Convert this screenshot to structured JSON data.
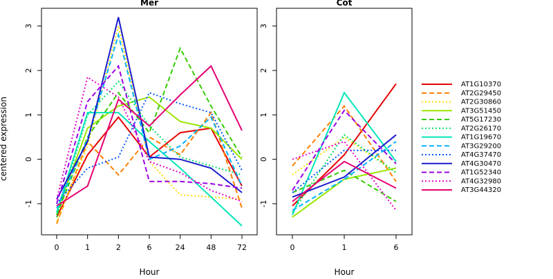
{
  "chart_data": [
    {
      "type": "line",
      "title": "Mer",
      "xlabel": "Hour",
      "ylabel": "centered expression",
      "categories": [
        "0",
        "1",
        "2",
        "6",
        "24",
        "48",
        "72"
      ],
      "ylim": [
        -1.7,
        3.4
      ],
      "yticks": [
        -1,
        0,
        1,
        2,
        3
      ],
      "series": [
        {
          "name": "AT1G10370",
          "values": [
            -1.3,
            0.1,
            0.95,
            0.05,
            0.6,
            0.7,
            -0.6
          ]
        },
        {
          "name": "AT2G29450",
          "values": [
            -1.45,
            0.4,
            -0.35,
            0.5,
            0.1,
            1.05,
            -1.1
          ]
        },
        {
          "name": "AT2G30860",
          "values": [
            -1.4,
            0.3,
            3.0,
            -0.05,
            -0.8,
            -0.85,
            -0.9
          ]
        },
        {
          "name": "AT3G51450",
          "values": [
            -1.2,
            0.7,
            1.2,
            1.4,
            0.85,
            0.7,
            0.0
          ]
        },
        {
          "name": "AT5G17230",
          "values": [
            -1.25,
            0.5,
            1.5,
            0.6,
            2.5,
            1.2,
            0.05
          ]
        },
        {
          "name": "AT2G26170",
          "values": [
            -1.3,
            1.0,
            1.75,
            0.75,
            0.05,
            -0.15,
            -0.35
          ]
        },
        {
          "name": "AT1G19670",
          "values": [
            -1.2,
            1.05,
            1.05,
            0.4,
            -0.2,
            -0.85,
            -1.5
          ]
        },
        {
          "name": "AT3G29200",
          "values": [
            -1.1,
            0.45,
            2.8,
            0.0,
            0.3,
            0.95,
            -0.6
          ]
        },
        {
          "name": "AT4G37470",
          "values": [
            -1.0,
            -0.2,
            0.05,
            1.5,
            1.25,
            1.05,
            -0.25
          ]
        },
        {
          "name": "AT4G30470",
          "values": [
            -0.9,
            0.4,
            3.2,
            0.05,
            0.0,
            -0.2,
            -0.75
          ]
        },
        {
          "name": "AT1G52340",
          "values": [
            -1.0,
            1.3,
            2.1,
            -0.5,
            -0.5,
            -0.55,
            -0.65
          ]
        },
        {
          "name": "AT4G32980",
          "values": [
            -0.9,
            1.85,
            1.4,
            -0.05,
            -0.3,
            -0.7,
            -0.95
          ]
        },
        {
          "name": "AT3G44320",
          "values": [
            -1.05,
            -0.6,
            1.35,
            0.75,
            1.45,
            2.1,
            0.65
          ]
        }
      ]
    },
    {
      "type": "line",
      "title": "Cot",
      "xlabel": "Hour",
      "categories": [
        "0",
        "1",
        "6"
      ],
      "ylim": [
        -1.7,
        3.4
      ],
      "yticks": [
        -1,
        0,
        1,
        2,
        3
      ],
      "series": [
        {
          "name": "AT1G10370",
          "values": [
            -1.05,
            0.1,
            1.7
          ]
        },
        {
          "name": "AT2G29450",
          "values": [
            -0.15,
            1.2,
            -0.5
          ]
        },
        {
          "name": "AT2G30860",
          "values": [
            -0.35,
            0.5,
            -0.3
          ]
        },
        {
          "name": "AT3G51450",
          "values": [
            -1.3,
            -0.45,
            -0.2
          ]
        },
        {
          "name": "AT5G17230",
          "values": [
            -0.75,
            -0.25,
            -0.95
          ]
        },
        {
          "name": "AT2G26170",
          "values": [
            -1.2,
            0.55,
            -0.3
          ]
        },
        {
          "name": "AT1G19670",
          "values": [
            -1.25,
            1.5,
            -0.05
          ]
        },
        {
          "name": "AT3G29200",
          "values": [
            -1.15,
            -0.45,
            0.4
          ]
        },
        {
          "name": "AT4G37470",
          "values": [
            -0.75,
            0.2,
            0.2
          ]
        },
        {
          "name": "AT4G30470",
          "values": [
            -0.85,
            -0.4,
            0.55
          ]
        },
        {
          "name": "AT1G52340",
          "values": [
            -0.7,
            1.1,
            -0.1
          ]
        },
        {
          "name": "AT4G32980",
          "values": [
            0.0,
            0.4,
            -1.15
          ]
        },
        {
          "name": "AT3G44320",
          "values": [
            -0.95,
            -0.05,
            -0.65
          ]
        }
      ]
    }
  ],
  "legend": {
    "placement": "right",
    "entries": [
      {
        "label": "AT1G10370",
        "color": "#e60000",
        "dash": "solid"
      },
      {
        "label": "AT2G29450",
        "color": "#ff7f00",
        "dash": "dashed"
      },
      {
        "label": "AT2G30860",
        "color": "#ffdd00",
        "dash": "dotted"
      },
      {
        "label": "AT3G51450",
        "color": "#99e600",
        "dash": "solid"
      },
      {
        "label": "AT5G17230",
        "color": "#33cc00",
        "dash": "dashed"
      },
      {
        "label": "AT2G26170",
        "color": "#00e060",
        "dash": "dotted"
      },
      {
        "label": "AT1G19670",
        "color": "#00e6b8",
        "dash": "solid"
      },
      {
        "label": "AT3G29200",
        "color": "#00b3ff",
        "dash": "dashed"
      },
      {
        "label": "AT4G37470",
        "color": "#0055ff",
        "dash": "dotted"
      },
      {
        "label": "AT4G30470",
        "color": "#1a1acc",
        "dash": "solid"
      },
      {
        "label": "AT1G52340",
        "color": "#9900e6",
        "dash": "dashed"
      },
      {
        "label": "AT4G32980",
        "color": "#e600cc",
        "dash": "dotted"
      },
      {
        "label": "AT3G44320",
        "color": "#e60073",
        "dash": "solid"
      }
    ]
  }
}
